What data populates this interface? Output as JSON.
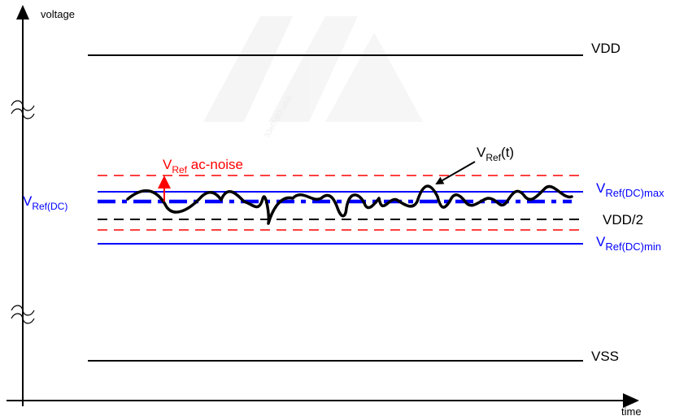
{
  "axes": {
    "y_label": "voltage",
    "x_label": "time"
  },
  "levels": {
    "vdd": "VDD",
    "vss": "VSS",
    "half": "VDD/2"
  },
  "vref": {
    "dc_base": "V",
    "dc_sub": "Ref(DC)",
    "max_base": "V",
    "max_sub": "Ref(DC)max",
    "min_base": "V",
    "min_sub": "Ref(DC)min",
    "t_base": "V",
    "t_sub": "Ref",
    "t_suffix": "(t)",
    "noise_base": "V",
    "noise_sub": "Ref",
    "noise_suffix": " ac-noise"
  },
  "watermark": "33ef7d82:a6dc",
  "colors": {
    "black": "#000000",
    "blue": "#0000ff",
    "red": "#ff0000",
    "watermark": "#eeeeee"
  }
}
